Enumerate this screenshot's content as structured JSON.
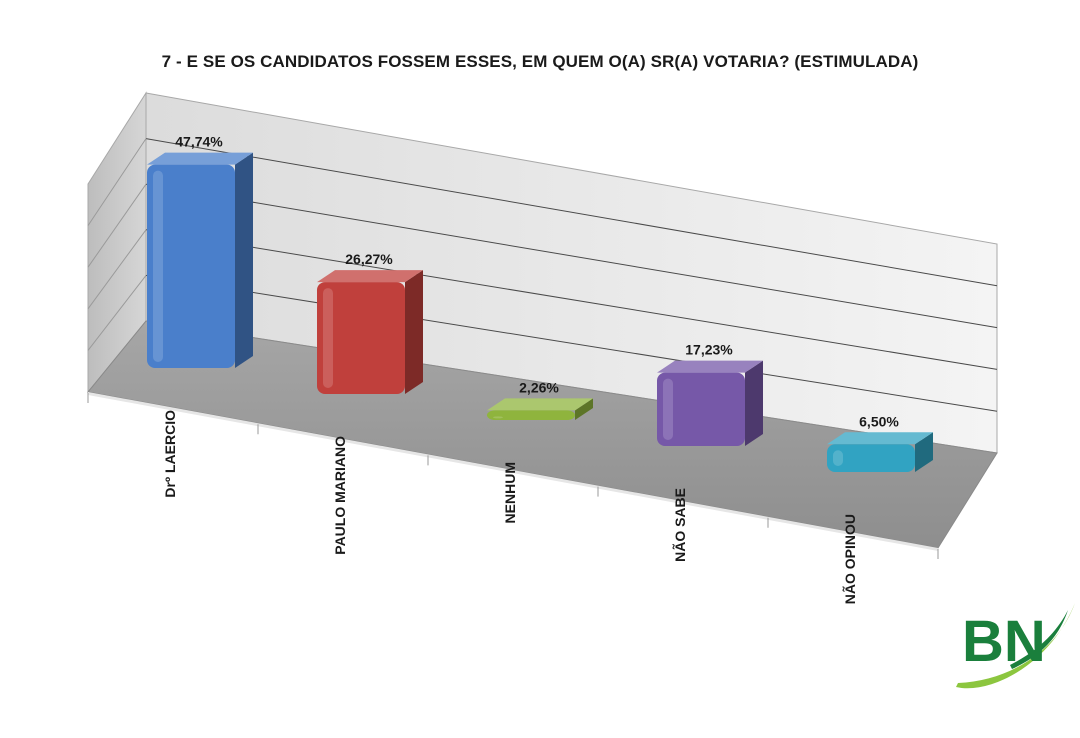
{
  "chart_data": {
    "type": "bar",
    "title": "7 - E SE OS CANDIDATOS FOSSEM ESSES, EM QUEM O(A) SR(A) VOTARIA? (ESTIMULADA)",
    "categories": [
      "Drº LAERCIO",
      "PAULO MARIANO",
      "NENHUM",
      "NÃO SABE",
      "NÃO OPINOU"
    ],
    "values": [
      47.74,
      26.27,
      2.26,
      17.23,
      6.5
    ],
    "value_labels": [
      "47,74%",
      "26,27%",
      "2,26%",
      "17,23%",
      "6,50%"
    ],
    "colors": [
      "#4a7fcb",
      "#c0403c",
      "#8fb43d",
      "#7658a8",
      "#31a3c2"
    ],
    "xlabel": "",
    "ylabel": "",
    "ylim": [
      0,
      50
    ],
    "grid": true,
    "legend": "none",
    "style": "3d"
  },
  "logo": {
    "text": "BN",
    "colors": [
      "#1a7f3c",
      "#8cc63f"
    ]
  }
}
